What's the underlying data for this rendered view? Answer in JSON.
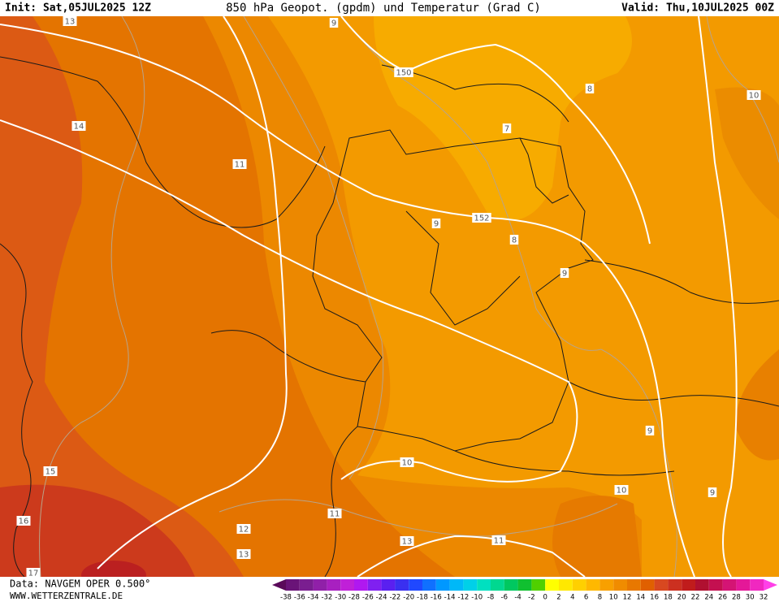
{
  "header": {
    "init": "Init: Sat,05JUL2025 12Z",
    "title": "850 hPa Geopot. (gpdm) und Temperatur (Grad C)",
    "valid": "Valid: Thu,10JUL2025 00Z"
  },
  "map": {
    "contour_labels": [
      "13",
      "9",
      "150",
      "8",
      "10",
      "7",
      "14",
      "11",
      "152",
      "9",
      "8",
      "9",
      "9",
      "10",
      "15",
      "10",
      "9",
      "11",
      "12",
      "16",
      "11",
      "13",
      "13",
      "17"
    ]
  },
  "footer": {
    "data_source": "Data: NAVGEM OPER 0.500°",
    "website": "WWW.WETTERZENTRALE.DE"
  },
  "legend": {
    "labels": [
      -38,
      -36,
      -34,
      -32,
      -30,
      -28,
      -26,
      -24,
      -22,
      -20,
      -18,
      -16,
      -14,
      -12,
      -10,
      -8,
      -6,
      -4,
      -2,
      0,
      2,
      4,
      6,
      8,
      10,
      12,
      14,
      16,
      18,
      20,
      22,
      24,
      26,
      28,
      30,
      32
    ],
    "colors": [
      "#5a0a5a",
      "#6a1478",
      "#7a1e90",
      "#9020a8",
      "#a820c0",
      "#c020d8",
      "#b018f0",
      "#8020f0",
      "#5a20f0",
      "#3a30f0",
      "#2048ff",
      "#1070ff",
      "#0098ff",
      "#00b8f8",
      "#00d0e8",
      "#00e0c0",
      "#00d890",
      "#00c860",
      "#10c030",
      "#50d000",
      "#ffff00",
      "#ffe800",
      "#ffd000",
      "#ffb800",
      "#f8a000",
      "#f08c00",
      "#e87800",
      "#e06000",
      "#d84820",
      "#cc3020",
      "#c01c1c",
      "#b01030",
      "#c41050",
      "#d41474",
      "#e41898",
      "#f028c0",
      "#ff40e8"
    ]
  }
}
